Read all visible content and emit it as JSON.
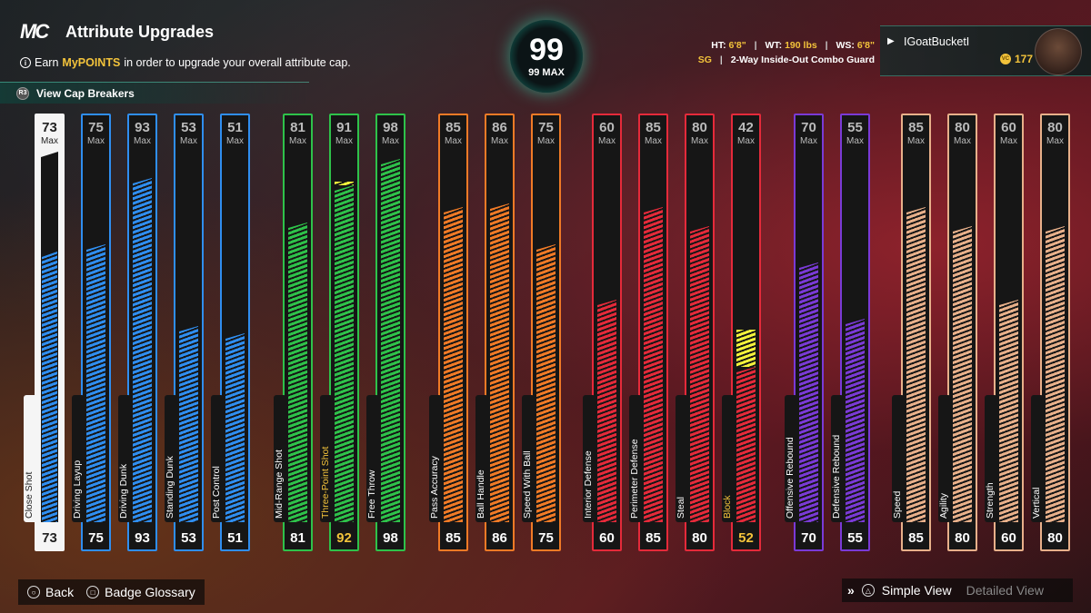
{
  "header": {
    "logo_text": "MC",
    "title": "Attribute Upgrades",
    "earn_prefix": "Earn",
    "earn_highlight": "MyPOINTS",
    "earn_suffix": "in order to upgrade your overall attribute cap.",
    "cap_breakers_label": "View Cap Breakers"
  },
  "overall": {
    "value": "99",
    "max_label": "99 MAX"
  },
  "player": {
    "ht_label": "HT:",
    "ht_value": "6'8\"",
    "wt_label": "WT:",
    "wt_value": "190 lbs",
    "ws_label": "WS:",
    "ws_value": "6'8\"",
    "position": "SG",
    "archetype": "2-Way Inside-Out Combo Guard",
    "gamertag": "IGoatBucketI",
    "coins": "177"
  },
  "max_label": "Max",
  "attributes": [
    {
      "name": "Close Shot",
      "cap": 73,
      "current": 73,
      "color": "#ffffff",
      "group": "finishing",
      "style": "white"
    },
    {
      "name": "Driving Layup",
      "cap": 75,
      "current": 75,
      "color": "#2f8ef0",
      "group": "finishing"
    },
    {
      "name": "Driving Dunk",
      "cap": 93,
      "current": 93,
      "color": "#2f8ef0",
      "group": "finishing"
    },
    {
      "name": "Standing Dunk",
      "cap": 53,
      "current": 53,
      "color": "#2f8ef0",
      "group": "finishing"
    },
    {
      "name": "Post Control",
      "cap": 51,
      "current": 51,
      "color": "#2f8ef0",
      "group": "finishing"
    },
    {
      "name": "Mid-Range Shot",
      "cap": 81,
      "current": 81,
      "color": "#2ec24a",
      "group": "shooting"
    },
    {
      "name": "Three-Point Shot",
      "cap": 91,
      "current": 92,
      "color": "#2ec24a",
      "group": "shooting",
      "highlight": true
    },
    {
      "name": "Free Throw",
      "cap": 98,
      "current": 98,
      "color": "#2ec24a",
      "group": "shooting"
    },
    {
      "name": "Pass Accuracy",
      "cap": 85,
      "current": 85,
      "color": "#f07a26",
      "group": "playmaking"
    },
    {
      "name": "Ball Handle",
      "cap": 86,
      "current": 86,
      "color": "#f07a26",
      "group": "playmaking"
    },
    {
      "name": "Speed With Ball",
      "cap": 75,
      "current": 75,
      "color": "#f07a26",
      "group": "playmaking"
    },
    {
      "name": "Interior Defense",
      "cap": 60,
      "current": 60,
      "color": "#e52a3a",
      "group": "defense"
    },
    {
      "name": "Perimeter Defense",
      "cap": 85,
      "current": 85,
      "color": "#e52a3a",
      "group": "defense"
    },
    {
      "name": "Steal",
      "cap": 80,
      "current": 80,
      "color": "#e52a3a",
      "group": "defense"
    },
    {
      "name": "Block",
      "cap": 42,
      "current": 52,
      "color": "#e52a3a",
      "group": "defense",
      "highlight": true
    },
    {
      "name": "Offensive Rebound",
      "cap": 70,
      "current": 70,
      "color": "#7a3ad6",
      "group": "rebounding"
    },
    {
      "name": "Defensive Rebound",
      "cap": 55,
      "current": 55,
      "color": "#7a3ad6",
      "group": "rebounding"
    },
    {
      "name": "Speed",
      "cap": 85,
      "current": 85,
      "color": "#e8b08a",
      "group": "physicals"
    },
    {
      "name": "Agility",
      "cap": 80,
      "current": 80,
      "color": "#e8b08a",
      "group": "physicals"
    },
    {
      "name": "Strength",
      "cap": 60,
      "current": 60,
      "color": "#e8b08a",
      "group": "physicals"
    },
    {
      "name": "Vertical",
      "cap": 80,
      "current": 80,
      "color": "#e8b08a",
      "group": "physicals"
    }
  ],
  "footer": {
    "back_label": "Back",
    "glossary_label": "Badge Glossary",
    "simple_view_label": "Simple View",
    "detailed_view_label": "Detailed View"
  },
  "colors": {
    "accent": "#2ee0b5",
    "highlight": "#f3c33b"
  }
}
